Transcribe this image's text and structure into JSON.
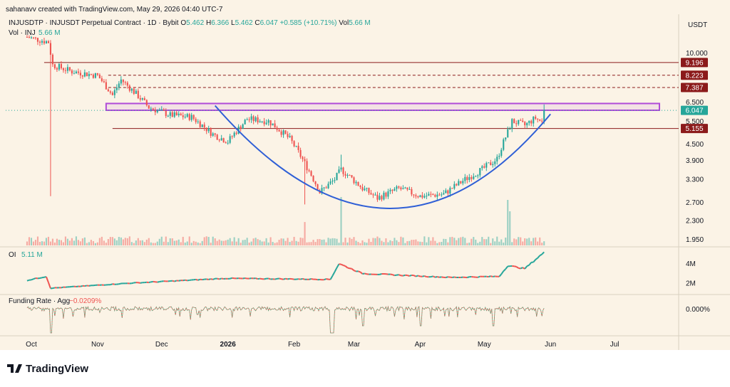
{
  "header": {
    "creator": "sahanavv created with TradingView.com, May 29, 2026 04:40 UTC-7",
    "symbol": "INJUSDTP · INJUSDT Perpetual Contract · 1D · Bybit",
    "ohlc": {
      "o_label": "O",
      "o": "5.462",
      "h_label": "H",
      "h": "6.366",
      "l_label": "L",
      "l": "5.462",
      "c_label": "C",
      "c": "6.047",
      "change": "+0.585 (+10.71%)",
      "vol_label": "Vol",
      "vol": "5.66 M"
    },
    "vol_pane_label": "Vol · INJ",
    "vol_pane_value": "5.66 M"
  },
  "colors": {
    "background": "#fbf3e6",
    "up": "#26a69a",
    "down": "#ef5350",
    "resistance": "#8b1a1a",
    "zone": "#b04bd8",
    "curve": "#2f5fd6",
    "price_tag": "#26a69a"
  },
  "chart_data": {
    "type": "candlestick",
    "currency": "USDT",
    "x_tick_labels": [
      "Oct",
      "Nov",
      "Dec",
      "2026",
      "Feb",
      "Mar",
      "Apr",
      "May",
      "Jun",
      "Jul"
    ],
    "y_tick_labels": [
      "10.000",
      "6.500",
      "5.500",
      "4.500",
      "3.900",
      "3.300",
      "2.700",
      "2.300",
      "1.950"
    ],
    "ylim": [
      1.85,
      11.5
    ],
    "y_scale": "log",
    "price_levels": [
      {
        "value": 9.196,
        "label": "9.196",
        "style": "solid"
      },
      {
        "value": 8.223,
        "label": "8.223",
        "style": "dashed"
      },
      {
        "value": 7.387,
        "label": "7.387",
        "style": "dashed"
      },
      {
        "value": 5.155,
        "label": "5.155",
        "style": "solid"
      }
    ],
    "zone": {
      "low": 6.05,
      "high": 6.42
    },
    "last_price": {
      "value": 6.047,
      "label": "6.047"
    },
    "series_control_points": [
      {
        "date": "2025-09-29",
        "close": 11.5
      },
      {
        "date": "2025-10-09",
        "close": 11.0
      },
      {
        "date": "2025-10-11",
        "close": 9.0
      },
      {
        "date": "2025-10-20",
        "close": 8.5
      },
      {
        "date": "2025-11-01",
        "close": 8.2
      },
      {
        "date": "2025-11-08",
        "close": 6.9
      },
      {
        "date": "2025-11-12",
        "close": 7.9
      },
      {
        "date": "2025-11-25",
        "close": 6.2
      },
      {
        "date": "2025-12-05",
        "close": 5.8
      },
      {
        "date": "2025-12-15",
        "close": 5.7
      },
      {
        "date": "2025-12-25",
        "close": 4.9
      },
      {
        "date": "2026-01-01",
        "close": 4.6
      },
      {
        "date": "2026-01-10",
        "close": 5.6
      },
      {
        "date": "2026-01-20",
        "close": 5.5
      },
      {
        "date": "2026-01-30",
        "close": 4.7
      },
      {
        "date": "2026-02-06",
        "close": 3.8
      },
      {
        "date": "2026-02-13",
        "close": 2.95
      },
      {
        "date": "2026-02-20",
        "close": 3.3
      },
      {
        "date": "2026-02-23",
        "close": 3.6
      },
      {
        "date": "2026-03-05",
        "close": 3.05
      },
      {
        "date": "2026-03-12",
        "close": 2.8
      },
      {
        "date": "2026-03-22",
        "close": 3.05
      },
      {
        "date": "2026-04-01",
        "close": 2.85
      },
      {
        "date": "2026-04-12",
        "close": 2.9
      },
      {
        "date": "2026-04-22",
        "close": 3.3
      },
      {
        "date": "2026-04-30",
        "close": 3.6
      },
      {
        "date": "2026-05-07",
        "close": 3.95
      },
      {
        "date": "2026-05-12",
        "close": 5.0
      },
      {
        "date": "2026-05-14",
        "close": 5.5
      },
      {
        "date": "2026-05-20",
        "close": 5.3
      },
      {
        "date": "2026-05-25",
        "close": 5.65
      },
      {
        "date": "2026-05-28",
        "close": 5.462
      },
      {
        "date": "2026-05-29",
        "close": 6.047
      }
    ]
  },
  "oi_pane": {
    "label": "OI",
    "value": "5.11 M",
    "y_tick_labels": [
      "4M",
      "2M"
    ],
    "series_control_points": [
      {
        "date": "2025-09-29",
        "value": 2.3
      },
      {
        "date": "2025-10-08",
        "value": 2.7
      },
      {
        "date": "2025-10-10",
        "value": 1.5
      },
      {
        "date": "2025-11-15",
        "value": 2.0
      },
      {
        "date": "2025-12-31",
        "value": 2.5
      },
      {
        "date": "2026-02-18",
        "value": 2.4
      },
      {
        "date": "2026-02-22",
        "value": 4.0
      },
      {
        "date": "2026-03-05",
        "value": 3.0
      },
      {
        "date": "2026-04-15",
        "value": 2.6
      },
      {
        "date": "2026-05-08",
        "value": 2.7
      },
      {
        "date": "2026-05-12",
        "value": 3.8
      },
      {
        "date": "2026-05-20",
        "value": 3.5
      },
      {
        "date": "2026-05-27",
        "value": 4.8
      },
      {
        "date": "2026-05-29",
        "value": 5.11
      }
    ]
  },
  "funding_pane": {
    "label": "Funding Rate · Agg",
    "value": "−0.0209%",
    "y_tick_label": "0.000%"
  },
  "logo": {
    "text": "TradingView"
  }
}
